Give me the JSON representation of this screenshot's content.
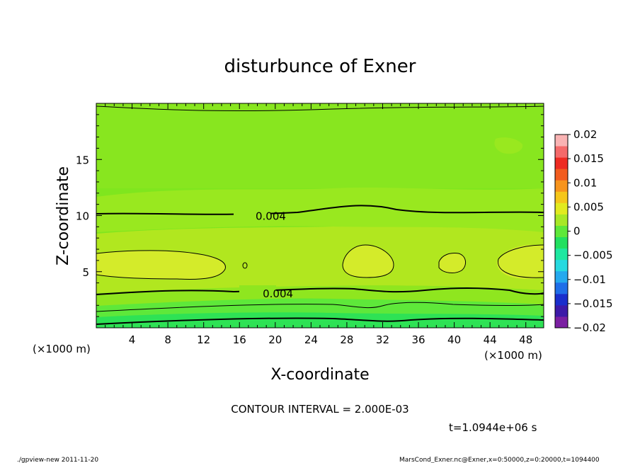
{
  "chart_data": {
    "type": "heatmap",
    "title": "disturbunce of Exner",
    "xlabel": "X-coordinate",
    "ylabel": "Z-coordinate",
    "x_unit": "(×1000 m)",
    "x_unit_right": "(×1000 m)",
    "xlim": [
      0,
      50
    ],
    "ylim": [
      0,
      20
    ],
    "x_ticks": [
      "4",
      "8",
      "12",
      "16",
      "20",
      "24",
      "28",
      "32",
      "36",
      "40",
      "44",
      "48"
    ],
    "y_ticks": [
      "5",
      "10",
      "15"
    ],
    "colorbar": {
      "ticks": [
        "0.02",
        "0.015",
        "0.01",
        "0.005",
        "0",
        "−0.005",
        "−0.01",
        "−0.015",
        "−0.02"
      ],
      "range": [
        -0.02,
        0.02
      ],
      "colors": [
        "#7b1fa2",
        "#3d1aa8",
        "#1a2ecc",
        "#1f6ee8",
        "#25a9ee",
        "#27d9e0",
        "#1ee8a0",
        "#22e060",
        "#5ee83a",
        "#a8e826",
        "#e2ea1f",
        "#f5c61a",
        "#f7941d",
        "#f25c1f",
        "#ee2b22",
        "#f46a6a",
        "#f9b3b3"
      ]
    },
    "contour_labels": [
      {
        "text": "0.004",
        "x": 19.5,
        "z": 10.0
      },
      {
        "text": "0.004",
        "x": 20.3,
        "z": 3.1
      }
    ],
    "contour_interval_text": "CONTOUR INTERVAL = 2.000E-03",
    "time_text": "t=1.0944e+06 s"
  },
  "footer": {
    "left": "./gpview-new  2011-11-20",
    "right": "MarsCond_Exner.nc@Exner,x=0:50000,z=0:20000,t=1094400"
  }
}
